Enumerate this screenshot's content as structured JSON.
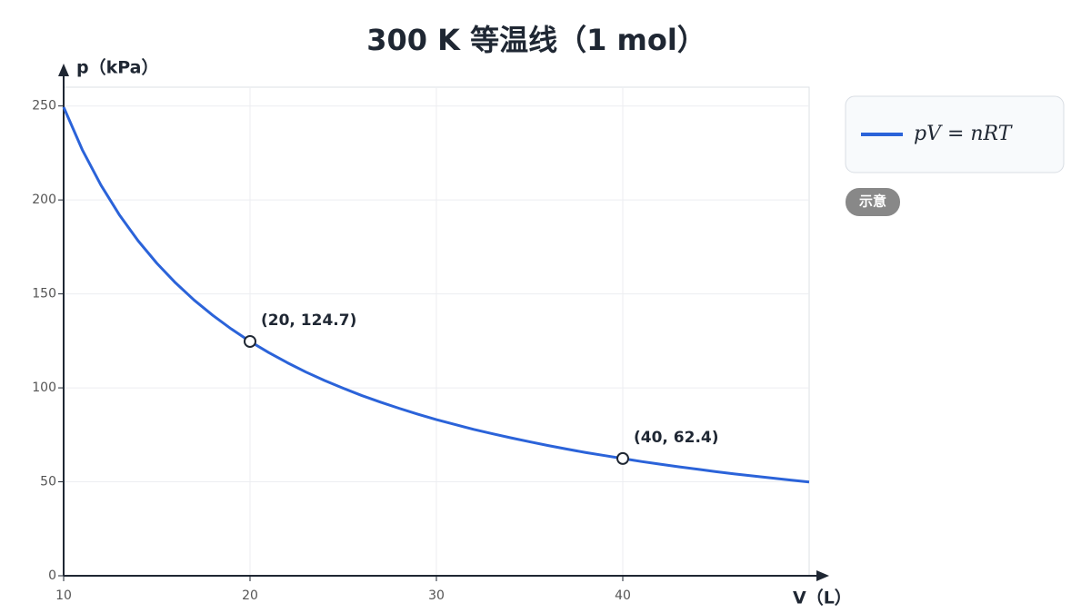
{
  "chart_data": {
    "type": "line",
    "title": "300 K 等温线（1 mol）",
    "x_label": "V（L）",
    "y_label": "p（kPa）",
    "x": [
      10,
      11,
      12,
      13,
      14,
      15,
      16,
      17,
      18,
      19,
      20,
      21,
      22,
      23,
      24,
      25,
      26,
      27,
      28,
      29,
      30,
      31,
      32,
      33,
      34,
      35,
      36,
      37,
      38,
      39,
      40,
      41,
      42,
      43,
      44,
      45,
      46,
      47,
      48,
      49,
      50
    ],
    "series": [
      {
        "name": "pV = nRT",
        "color": "#2b63d9",
        "values": [
          249.4,
          226.7,
          207.9,
          191.9,
          178.2,
          166.3,
          155.9,
          146.7,
          138.6,
          131.3,
          124.7,
          118.8,
          113.4,
          108.4,
          103.9,
          99.8,
          95.9,
          92.4,
          89.1,
          86.0,
          83.1,
          80.5,
          77.9,
          75.6,
          73.4,
          71.3,
          69.3,
          67.4,
          65.6,
          64.0,
          62.4,
          60.8,
          59.4,
          58.0,
          56.7,
          55.4,
          54.2,
          53.1,
          52.0,
          50.9,
          49.9
        ]
      }
    ],
    "annotations": [
      {
        "x": 20,
        "y": 124.7,
        "label": "(20, 124.7)"
      },
      {
        "x": 40,
        "y": 62.4,
        "label": "(40, 62.4)"
      }
    ],
    "xlim": [
      10,
      50
    ],
    "xticks": [
      10,
      20,
      30,
      40
    ],
    "ylim": [
      0,
      260
    ],
    "yticks": [
      0,
      50,
      100,
      150,
      200,
      250
    ],
    "grid": true,
    "badge": "示意"
  }
}
